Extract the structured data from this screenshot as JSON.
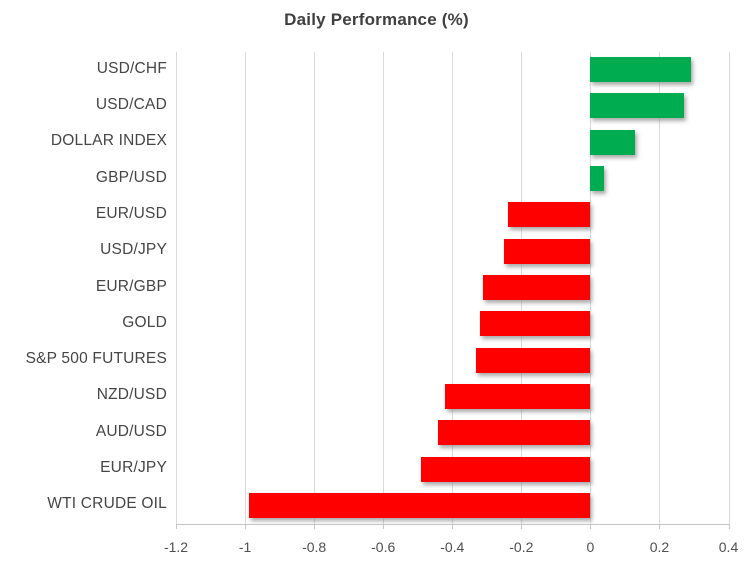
{
  "chart_data": {
    "type": "bar",
    "orientation": "horizontal",
    "title": "Daily Performance (%)",
    "categories": [
      "USD/CHF",
      "USD/CAD",
      "DOLLAR INDEX",
      "GBP/USD",
      "EUR/USD",
      "USD/JPY",
      "EUR/GBP",
      "GOLD",
      "S&P 500 FUTURES",
      "NZD/USD",
      "AUD/USD",
      "EUR/JPY",
      "WTI CRUDE OIL"
    ],
    "values": [
      0.29,
      0.27,
      0.13,
      0.04,
      -0.24,
      -0.25,
      -0.31,
      -0.32,
      -0.33,
      -0.42,
      -0.44,
      -0.49,
      -0.99
    ],
    "xlabel": "",
    "ylabel": "",
    "xlim": [
      -1.2,
      0.4
    ],
    "xticks": [
      {
        "value": -1.2,
        "label": "-1.2"
      },
      {
        "value": -1.0,
        "label": "-1"
      },
      {
        "value": -0.8,
        "label": "-0.8"
      },
      {
        "value": -0.6,
        "label": "-0.6"
      },
      {
        "value": -0.4,
        "label": "-0.4"
      },
      {
        "value": -0.2,
        "label": "-0.2"
      },
      {
        "value": 0,
        "label": "0"
      },
      {
        "value": 0.2,
        "label": "0.2"
      },
      {
        "value": 0.4,
        "label": "0.4"
      }
    ],
    "grid": "vertical-on",
    "legend": "none",
    "colors": {
      "positive": "#00AC50",
      "negative": "#FE0000",
      "gridline": "#D9D9D9",
      "axis": "#C6C6C6",
      "title_text": "#404040",
      "category_text": "#454545",
      "tick_text": "#4F4F4F"
    }
  }
}
